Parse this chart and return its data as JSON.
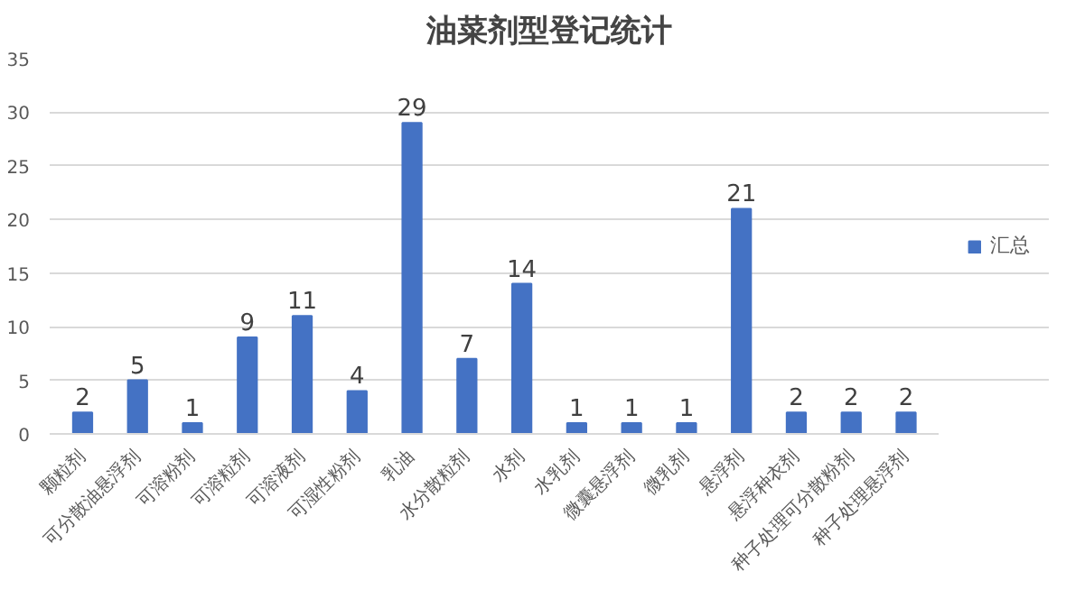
{
  "chart_data": {
    "type": "bar",
    "title": "油菜剂型登记统计",
    "categories": [
      "颗粒剂",
      "可分散油悬浮剂",
      "可溶粉剂",
      "可溶粒剂",
      "可溶液剂",
      "可湿性粉剂",
      "乳油",
      "水分散粒剂",
      "水剂",
      "水乳剂",
      "微囊悬浮剂",
      "微乳剂",
      "悬浮剂",
      "悬浮种衣剂",
      "种子处理可分散粉剂",
      "种子处理悬浮剂"
    ],
    "series": [
      {
        "name": "汇总",
        "color": "#4472c4",
        "values": [
          2,
          5,
          1,
          9,
          11,
          4,
          29,
          7,
          14,
          1,
          1,
          1,
          21,
          2,
          2,
          2
        ]
      }
    ],
    "ylim": [
      0,
      35
    ],
    "yticks": [
      0,
      5,
      10,
      15,
      20,
      25,
      30,
      35
    ],
    "grid": "y",
    "legend": "right",
    "data_labels": true
  }
}
